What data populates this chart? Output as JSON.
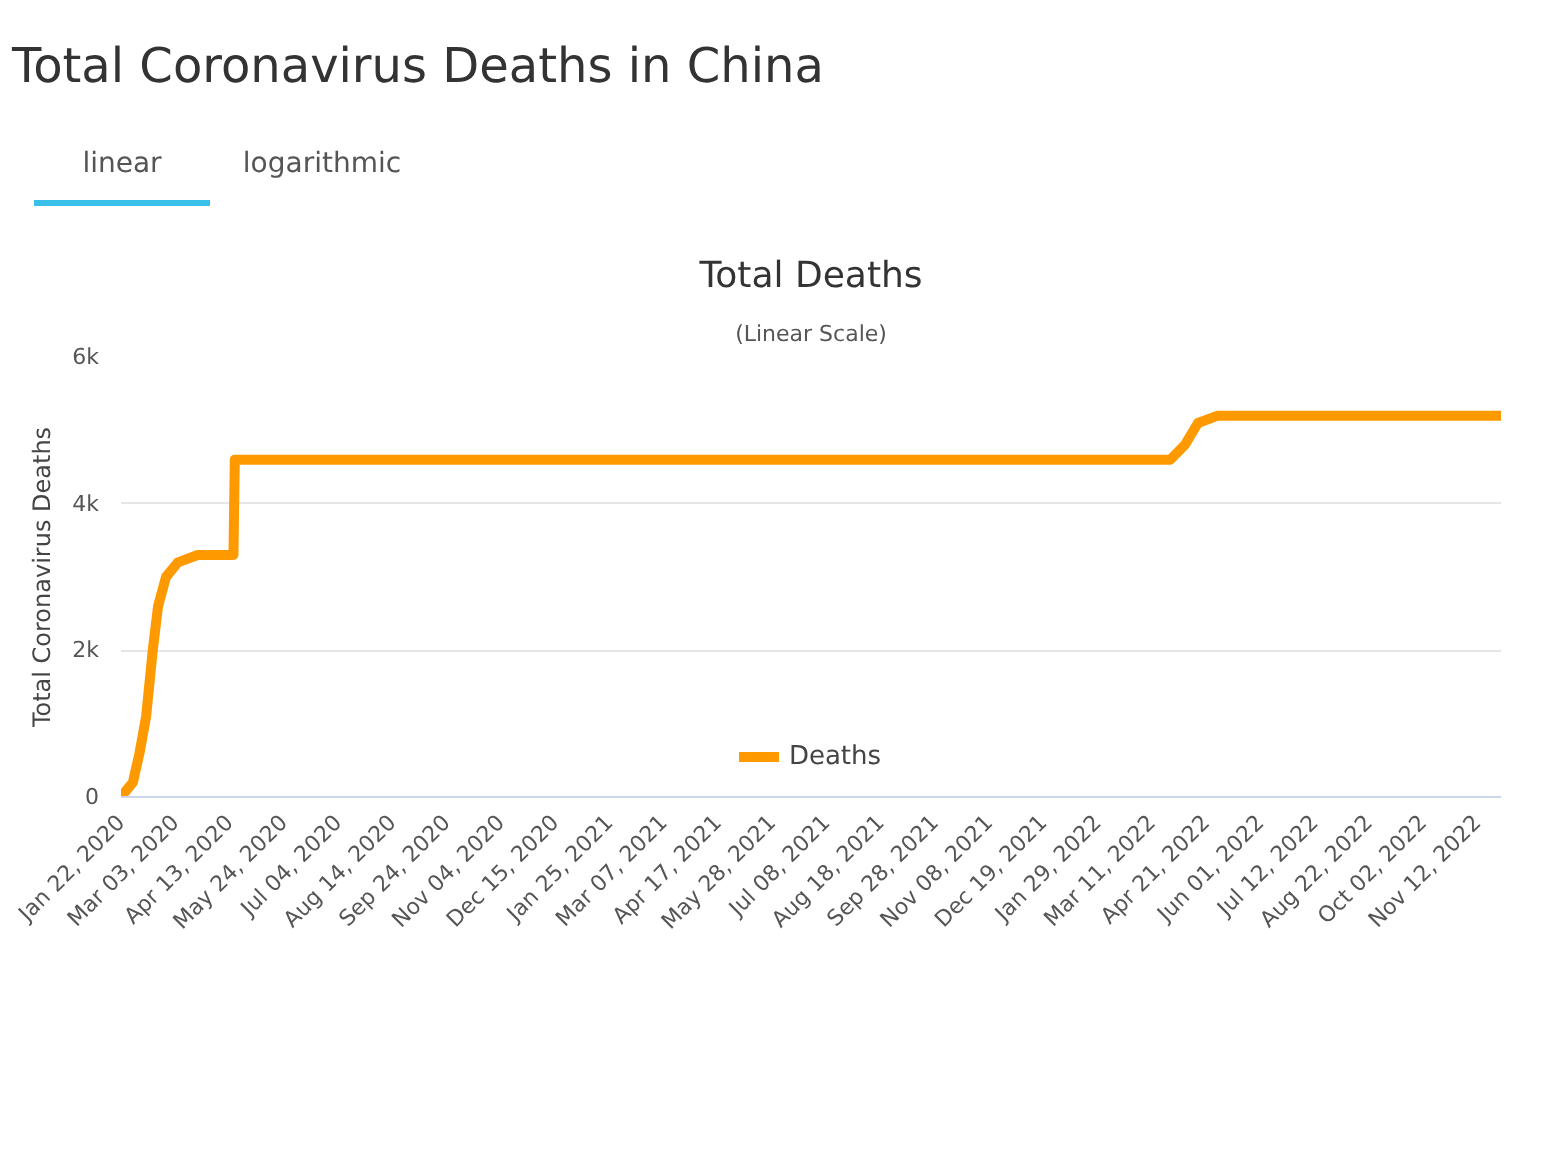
{
  "chart_data": {
    "type": "line",
    "title": "Total Deaths",
    "subtitle": "(Linear Scale)",
    "ylabel": "Total Coronavirus Deaths",
    "annotations": [
      "Total Coronavirus Deaths in China",
      "linear",
      "logarithmic"
    ],
    "x": [
      "2020-01-22",
      "2020-01-31",
      "2020-02-05",
      "2020-02-10",
      "2020-02-15",
      "2020-02-19",
      "2020-02-25",
      "2020-03-05",
      "2020-03-20",
      "2020-04-16",
      "2020-04-17",
      "2021-01-25",
      "2022-03-25",
      "2022-04-05",
      "2022-04-15",
      "2022-04-30",
      "2022-05-31",
      "2022-11-30"
    ],
    "series": [
      {
        "name": "Deaths",
        "color": "#ff9900",
        "values": [
          0,
          200,
          600,
          1100,
          2000,
          2600,
          3000,
          3200,
          3300,
          3300,
          4600,
          4600,
          4600,
          4800,
          5100,
          5200,
          5200,
          5200
        ]
      }
    ],
    "xlim": [
      "2020-01-22",
      "2022-11-30"
    ],
    "xticks": [
      {
        "value": "2020-01-22",
        "label": "Jan 22, 2020"
      },
      {
        "value": "2020-03-03",
        "label": "Mar 03, 2020"
      },
      {
        "value": "2020-04-13",
        "label": "Apr 13, 2020"
      },
      {
        "value": "2020-05-24",
        "label": "May 24, 2020"
      },
      {
        "value": "2020-07-04",
        "label": "Jul 04, 2020"
      },
      {
        "value": "2020-08-14",
        "label": "Aug 14, 2020"
      },
      {
        "value": "2020-09-24",
        "label": "Sep 24, 2020"
      },
      {
        "value": "2020-11-04",
        "label": "Nov 04, 2020"
      },
      {
        "value": "2020-12-15",
        "label": "Dec 15, 2020"
      },
      {
        "value": "2021-01-25",
        "label": "Jan 25, 2021"
      },
      {
        "value": "2021-03-07",
        "label": "Mar 07, 2021"
      },
      {
        "value": "2021-04-17",
        "label": "Apr 17, 2021"
      },
      {
        "value": "2021-05-28",
        "label": "May 28, 2021"
      },
      {
        "value": "2021-07-08",
        "label": "Jul 08, 2021"
      },
      {
        "value": "2021-08-18",
        "label": "Aug 18, 2021"
      },
      {
        "value": "2021-09-28",
        "label": "Sep 28, 2021"
      },
      {
        "value": "2021-11-08",
        "label": "Nov 08, 2021"
      },
      {
        "value": "2021-12-19",
        "label": "Dec 19, 2021"
      },
      {
        "value": "2022-01-29",
        "label": "Jan 29, 2022"
      },
      {
        "value": "2022-03-11",
        "label": "Mar 11, 2022"
      },
      {
        "value": "2022-04-21",
        "label": "Apr 21, 2022"
      },
      {
        "value": "2022-06-01",
        "label": "Jun 01, 2022"
      },
      {
        "value": "2022-07-12",
        "label": "Jul 12, 2022"
      },
      {
        "value": "2022-08-22",
        "label": "Aug 22, 2022"
      },
      {
        "value": "2022-10-02",
        "label": "Oct 02, 2022"
      },
      {
        "value": "2022-11-12",
        "label": "Nov 12, 2022"
      }
    ],
    "ylim": [
      0,
      6000
    ],
    "yticks": [
      0,
      {
        "value": 2000,
        "label": "2k"
      },
      {
        "value": 4000,
        "label": "4k"
      },
      {
        "value": 6000,
        "label": "6k"
      }
    ],
    "grid": "y",
    "legend": "bottom",
    "marker": "none",
    "line_style": "solid"
  }
}
